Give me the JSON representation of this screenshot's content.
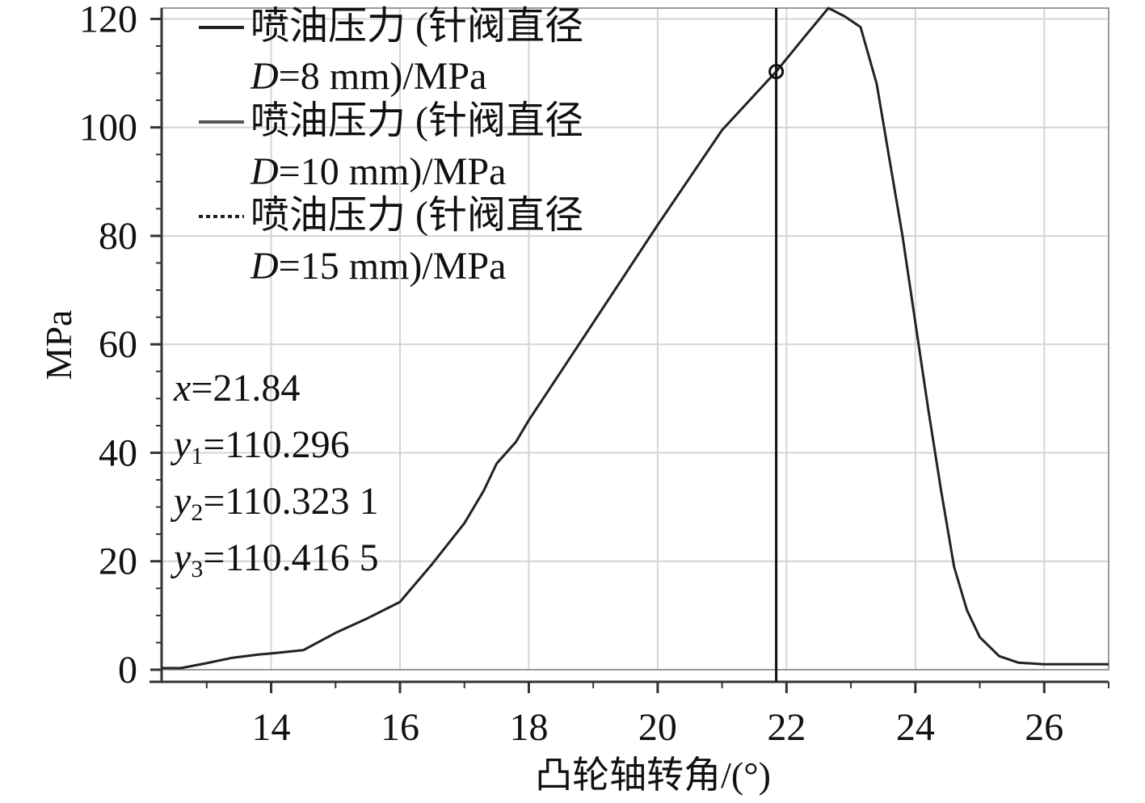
{
  "chart_data": {
    "type": "line",
    "title": "",
    "xlabel": "凸轮轴转角/(°)",
    "ylabel": "MPa",
    "xlim": [
      12.3,
      27
    ],
    "ylim": [
      0,
      122
    ],
    "x_ticks": [
      14,
      16,
      18,
      20,
      22,
      24,
      26
    ],
    "y_ticks": [
      0,
      20,
      40,
      60,
      80,
      100,
      120
    ],
    "grid": true,
    "legend_position": "top-left",
    "series": [
      {
        "name_prefix": "喷油压力 (针阀直径",
        "name_var": "D",
        "name_suffix": "=8 mm)/MPa",
        "style": "solid",
        "color": "#222222",
        "x": [
          12.3,
          12.6,
          13.0,
          13.4,
          13.8,
          14.0,
          14.5,
          15.0,
          15.5,
          16.0,
          16.5,
          17.0,
          17.3,
          17.5,
          17.8,
          18.0,
          19.0,
          20.0,
          21.0,
          21.84,
          22.3,
          22.65,
          22.9,
          23.15,
          23.4,
          23.6,
          23.8,
          24.0,
          24.2,
          24.4,
          24.6,
          24.8,
          25.0,
          25.3,
          25.6,
          26.0,
          26.5,
          27.0
        ],
        "y": [
          0.3,
          0.3,
          1.2,
          2.2,
          2.8,
          3.0,
          3.6,
          6.8,
          9.5,
          12.5,
          19.5,
          27.0,
          33.0,
          38.0,
          42.0,
          46.0,
          64.0,
          82.0,
          99.5,
          110.3,
          117.0,
          122.0,
          120.5,
          118.5,
          108.0,
          94.0,
          80.0,
          64.0,
          48.0,
          33.0,
          19.0,
          11.0,
          6.0,
          2.5,
          1.3,
          1.0,
          1.0,
          1.0
        ]
      },
      {
        "name_prefix": "喷油压力 (针阀直径",
        "name_var": "D",
        "name_suffix": "=10 mm)/MPa",
        "style": "solid",
        "color": "#555555",
        "x": [],
        "y": []
      },
      {
        "name_prefix": "喷油压力 (针阀直径",
        "name_var": "D",
        "name_suffix": "=15 mm)/MPa",
        "style": "dashed",
        "color": "#222222",
        "x": [],
        "y": []
      }
    ],
    "cursor": {
      "x": 21.84,
      "y": 110.296
    },
    "readout": [
      {
        "var": "x",
        "sub": "",
        "value": "=21.84"
      },
      {
        "var": "y",
        "sub": "1",
        "value": "=110.296"
      },
      {
        "var": "y",
        "sub": "2",
        "value": "=110.323 1"
      },
      {
        "var": "y",
        "sub": "3",
        "value": "=110.416 5"
      }
    ]
  }
}
